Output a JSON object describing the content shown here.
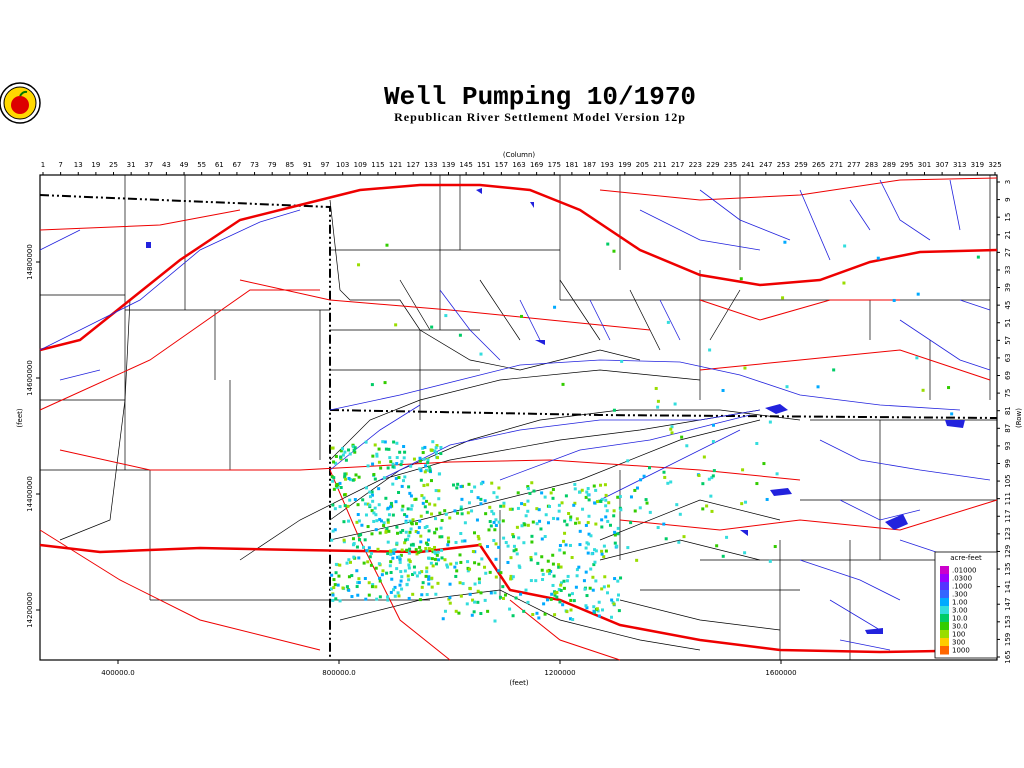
{
  "header": {
    "title": "Well Pumping 10/1970",
    "subtitle": "Republican River Settlement Model Version 12p"
  },
  "axes": {
    "column": {
      "title": "(Column)",
      "ticks": [
        1,
        7,
        13,
        19,
        25,
        31,
        37,
        43,
        49,
        55,
        61,
        67,
        73,
        79,
        85,
        91,
        97,
        103,
        109,
        115,
        121,
        127,
        133,
        139,
        145,
        151,
        157,
        163,
        169,
        175,
        181,
        187,
        193,
        199,
        205,
        211,
        217,
        223,
        229,
        235,
        241,
        247,
        253,
        259,
        265,
        271,
        277,
        283,
        289,
        295,
        301,
        307,
        313,
        319,
        325
      ]
    },
    "row": {
      "title": "(Row)",
      "ticks": [
        3,
        9,
        15,
        21,
        27,
        33,
        39,
        45,
        51,
        57,
        63,
        69,
        75,
        81,
        87,
        93,
        99,
        105,
        111,
        117,
        123,
        129,
        135,
        141,
        147,
        153,
        159,
        165
      ]
    },
    "x_feet": {
      "title": "(feet)",
      "ticks": [
        {
          "value": 400000,
          "label": "400000.0"
        },
        {
          "value": 800000,
          "label": "800000.0"
        },
        1200000,
        1600000
      ]
    },
    "y_feet": {
      "title": "(feet)",
      "ticks": [
        14800000,
        14600000,
        14400000,
        14200000
      ]
    }
  },
  "legend": {
    "title": "acre-feet",
    "labels": [
      ".01000",
      ".0300",
      ".1000",
      ".300",
      "1.00",
      "3.00",
      "10.0",
      "30.0",
      "100",
      "300",
      "1000"
    ],
    "colors": [
      "#cc00cc",
      "#9900ff",
      "#5533ff",
      "#3366ff",
      "#00aaff",
      "#33dddd",
      "#00cc66",
      "#33cc00",
      "#99dd00",
      "#ffcc00",
      "#ff6600"
    ]
  }
}
